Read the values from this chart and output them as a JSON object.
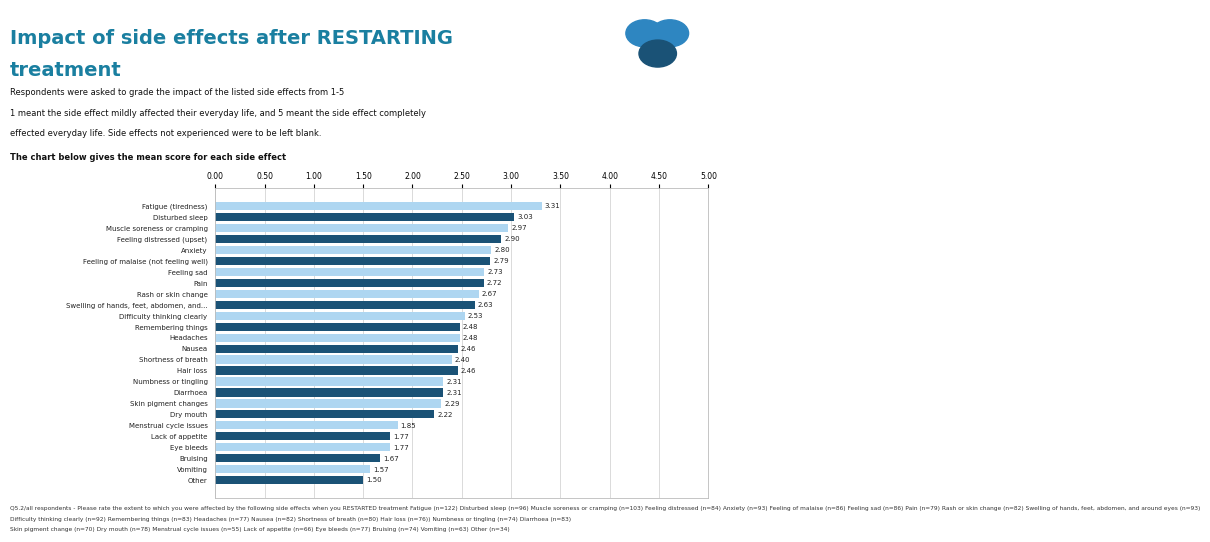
{
  "categories": [
    "Fatigue (tiredness)",
    "Disturbed sleep",
    "Muscle soreness or cramping",
    "Feeling distressed (upset)",
    "Anxiety",
    "Feeling of malaise (not feeling well)",
    "Feeling sad",
    "Pain",
    "Rash or skin change",
    "Swelling of hands, feet, abdomen, and...",
    "Difficulty thinking clearly",
    "Remembering things",
    "Headaches",
    "Nausea",
    "Shortness of breath",
    "Hair loss",
    "Numbness or tingling",
    "Diarrhoea",
    "Skin pigment changes",
    "Dry mouth",
    "Menstrual cycle issues",
    "Lack of appetite",
    "Eye bleeds",
    "Bruising",
    "Vomiting",
    "Other"
  ],
  "values": [
    3.31,
    3.03,
    2.97,
    2.9,
    2.8,
    2.79,
    2.73,
    2.72,
    2.67,
    2.63,
    2.53,
    2.48,
    2.48,
    2.46,
    2.4,
    2.46,
    2.31,
    2.31,
    2.29,
    2.22,
    1.85,
    1.77,
    1.77,
    1.67,
    1.57,
    1.5
  ],
  "bar_colors_dark": "#1a5276",
  "bar_colors_light": "#aed6f1",
  "dark_indices": [
    1,
    3,
    5,
    7,
    9,
    11,
    13,
    15,
    17,
    19,
    21,
    23,
    25
  ],
  "title_line1": "Impact of side effects after RESTARTING",
  "title_line2": "treatment",
  "subtitle_lines": [
    "Respondents were asked to grade the impact of the listed side effects from 1-5",
    "1 meant the side effect mildly affected their everyday life, and 5 meant the side effect completely",
    "effected everyday life. Side effects not experienced were to be left blank."
  ],
  "chart_note": "The chart below gives the mean score for each side effect",
  "xlim": [
    0,
    5.0
  ],
  "xticks": [
    0.0,
    0.5,
    1.0,
    1.5,
    2.0,
    2.5,
    3.0,
    3.5,
    4.0,
    4.5,
    5.0
  ],
  "xtick_labels": [
    "0.00",
    "0.50",
    "1.00",
    "1.50",
    "2.00",
    "2.50",
    "3.00",
    "3.50",
    "4.00",
    "4.50",
    "5.00"
  ],
  "title_color": "#1a7fa0",
  "background_color": "#ffffff",
  "logo_bg_color": "#1a3a4a",
  "footnote": "Q5.2/all respondents - Please rate the extent to which you were affected by the following side effects when you RESTARTED treatment Fatigue (n=122) Disturbed sleep (n=96) Muscle soreness or cramping (n=103) Feeling distressed (n=84) Anxiety (n=93) Feeling of malaise (n=86) Feeling sad (n=86) Pain (n=79) Rash or skin change (n=82) Swelling of hands, feet, abdomen, and around eyes (n=93)\nDifficulty thinking clearly (n=92) Remembering things (n=83) Headaches (n=77) Nausea (n=82) Shortness of breath (n=80) Hair loss (n=76)) Numbness or tingling (n=74) Diarrhoea (n=83)\nSkin pigment change (n=70) Dry mouth (n=78) Menstrual cycle issues (n=55) Lack of appetite (n=66) Eye bleeds (n=77) Bruising (n=74) Vomiting (n=63) Other (n=34)"
}
